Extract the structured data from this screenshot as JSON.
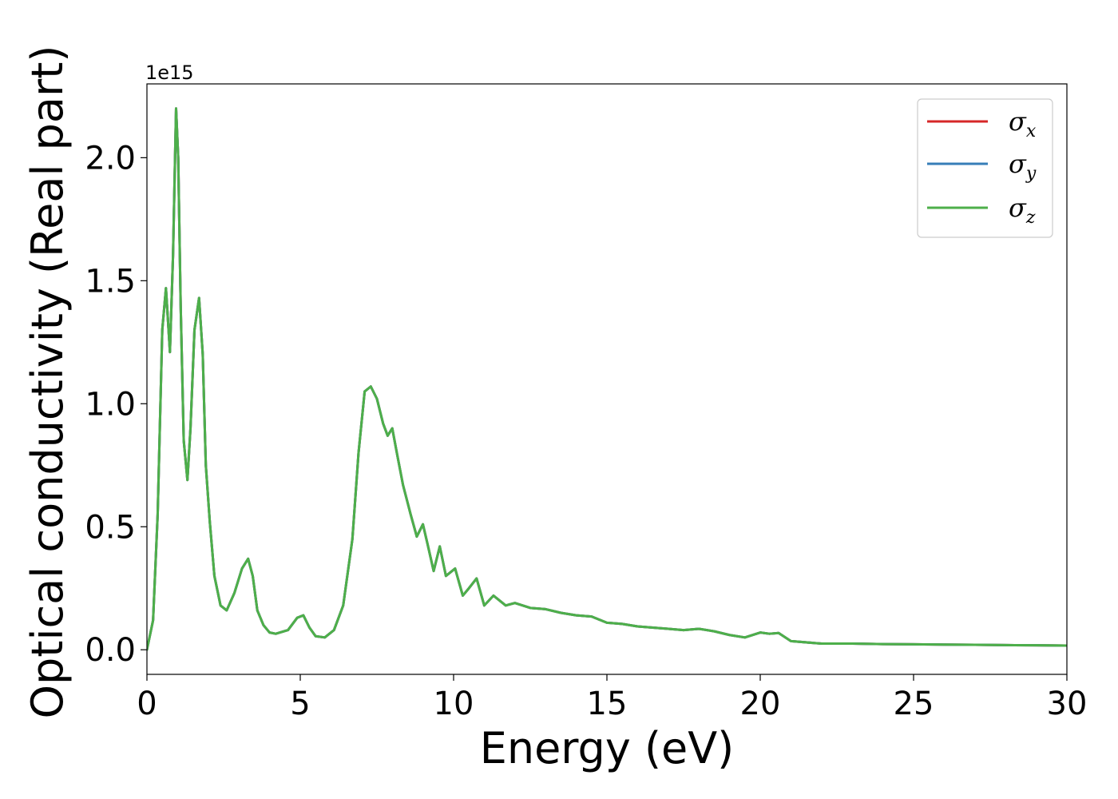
{
  "chart_data": {
    "type": "line",
    "title": "",
    "xlabel": "Energy (eV)",
    "ylabel": "Optical conductivity (Real part)",
    "y_offset_label": "1e15",
    "y_scale": 1000000000000000.0,
    "xlim": [
      0,
      30
    ],
    "ylim": [
      -0.1,
      2.3
    ],
    "x_ticks": [
      0,
      5,
      10,
      15,
      20,
      25,
      30
    ],
    "x_tick_labels": [
      "0",
      "5",
      "10",
      "15",
      "20",
      "25",
      "30"
    ],
    "y_ticks": [
      0.0,
      0.5,
      1.0,
      1.5,
      2.0
    ],
    "y_tick_labels": [
      "0.0",
      "0.5",
      "1.0",
      "1.5",
      "2.0"
    ],
    "grid": false,
    "legend_position": "top-right",
    "x": [
      0.0,
      0.2,
      0.35,
      0.5,
      0.62,
      0.75,
      0.85,
      0.95,
      1.02,
      1.1,
      1.2,
      1.32,
      1.42,
      1.55,
      1.7,
      1.82,
      1.92,
      2.05,
      2.2,
      2.4,
      2.6,
      2.85,
      3.1,
      3.3,
      3.45,
      3.6,
      3.8,
      4.0,
      4.2,
      4.6,
      4.9,
      5.1,
      5.3,
      5.5,
      5.8,
      6.1,
      6.4,
      6.7,
      6.9,
      7.1,
      7.3,
      7.5,
      7.7,
      7.85,
      8.0,
      8.15,
      8.35,
      8.6,
      8.8,
      9.0,
      9.15,
      9.35,
      9.55,
      9.75,
      10.05,
      10.3,
      10.5,
      10.75,
      11.0,
      11.3,
      11.7,
      12.0,
      12.5,
      13.0,
      13.5,
      14.0,
      14.5,
      15.0,
      15.5,
      16.0,
      16.5,
      17.0,
      17.5,
      18.0,
      18.5,
      19.0,
      19.5,
      20.0,
      20.3,
      20.6,
      21.0,
      22.0,
      23.0,
      24.0,
      25.0,
      26.0,
      27.0,
      28.0,
      29.0,
      30.0
    ],
    "series": [
      {
        "name": "σx",
        "label_base": "σ",
        "label_sub": "x",
        "color": "#d62728",
        "values": [
          0.0,
          0.12,
          0.55,
          1.3,
          1.47,
          1.21,
          1.6,
          2.2,
          2.0,
          1.4,
          0.85,
          0.69,
          0.9,
          1.3,
          1.43,
          1.2,
          0.75,
          0.52,
          0.3,
          0.18,
          0.16,
          0.23,
          0.33,
          0.37,
          0.3,
          0.16,
          0.1,
          0.07,
          0.065,
          0.08,
          0.13,
          0.14,
          0.09,
          0.055,
          0.05,
          0.08,
          0.18,
          0.45,
          0.8,
          1.05,
          1.07,
          1.02,
          0.92,
          0.87,
          0.9,
          0.8,
          0.67,
          0.55,
          0.46,
          0.51,
          0.43,
          0.32,
          0.42,
          0.3,
          0.33,
          0.22,
          0.25,
          0.29,
          0.18,
          0.22,
          0.18,
          0.19,
          0.17,
          0.165,
          0.15,
          0.14,
          0.135,
          0.11,
          0.105,
          0.095,
          0.09,
          0.085,
          0.08,
          0.085,
          0.075,
          0.06,
          0.05,
          0.07,
          0.065,
          0.068,
          0.035,
          0.025,
          0.025,
          0.023,
          0.022,
          0.021,
          0.02,
          0.019,
          0.018,
          0.017
        ]
      },
      {
        "name": "σy",
        "label_base": "σ",
        "label_sub": "y",
        "color": "#377eb8",
        "values": [
          0.0,
          0.12,
          0.55,
          1.3,
          1.47,
          1.21,
          1.6,
          2.2,
          2.0,
          1.4,
          0.85,
          0.69,
          0.9,
          1.3,
          1.43,
          1.2,
          0.75,
          0.52,
          0.3,
          0.18,
          0.16,
          0.23,
          0.33,
          0.37,
          0.3,
          0.16,
          0.1,
          0.07,
          0.065,
          0.08,
          0.13,
          0.14,
          0.09,
          0.055,
          0.05,
          0.08,
          0.18,
          0.45,
          0.8,
          1.05,
          1.07,
          1.02,
          0.92,
          0.87,
          0.9,
          0.8,
          0.67,
          0.55,
          0.46,
          0.51,
          0.43,
          0.32,
          0.42,
          0.3,
          0.33,
          0.22,
          0.25,
          0.29,
          0.18,
          0.22,
          0.18,
          0.19,
          0.17,
          0.165,
          0.15,
          0.14,
          0.135,
          0.11,
          0.105,
          0.095,
          0.09,
          0.085,
          0.08,
          0.085,
          0.075,
          0.06,
          0.05,
          0.07,
          0.065,
          0.068,
          0.035,
          0.025,
          0.025,
          0.023,
          0.022,
          0.021,
          0.02,
          0.019,
          0.018,
          0.017
        ]
      },
      {
        "name": "σz",
        "label_base": "σ",
        "label_sub": "z",
        "color": "#4daf4a",
        "values": [
          0.0,
          0.12,
          0.55,
          1.3,
          1.47,
          1.21,
          1.6,
          2.2,
          2.0,
          1.4,
          0.85,
          0.69,
          0.9,
          1.3,
          1.43,
          1.2,
          0.75,
          0.52,
          0.3,
          0.18,
          0.16,
          0.23,
          0.33,
          0.37,
          0.3,
          0.16,
          0.1,
          0.07,
          0.065,
          0.08,
          0.13,
          0.14,
          0.09,
          0.055,
          0.05,
          0.08,
          0.18,
          0.45,
          0.8,
          1.05,
          1.07,
          1.02,
          0.92,
          0.87,
          0.9,
          0.8,
          0.67,
          0.55,
          0.46,
          0.51,
          0.43,
          0.32,
          0.42,
          0.3,
          0.33,
          0.22,
          0.25,
          0.29,
          0.18,
          0.22,
          0.18,
          0.19,
          0.17,
          0.165,
          0.15,
          0.14,
          0.135,
          0.11,
          0.105,
          0.095,
          0.09,
          0.085,
          0.08,
          0.085,
          0.075,
          0.06,
          0.05,
          0.07,
          0.065,
          0.068,
          0.035,
          0.025,
          0.025,
          0.023,
          0.022,
          0.021,
          0.02,
          0.019,
          0.018,
          0.017
        ]
      }
    ]
  }
}
